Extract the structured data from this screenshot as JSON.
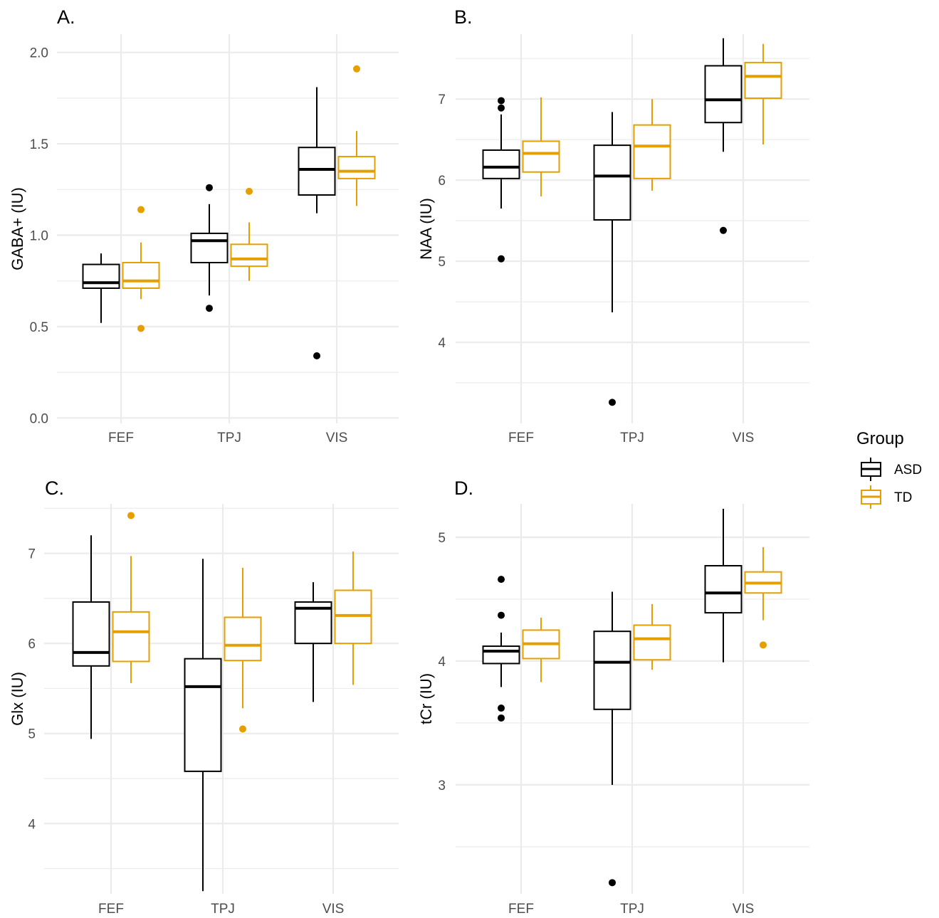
{
  "colors": {
    "ASD": "#000000",
    "TD": "#E69F00",
    "grid": "#ebebeb"
  },
  "legend": {
    "title": "Group",
    "items": [
      {
        "label": "ASD",
        "color": "#000000"
      },
      {
        "label": "TD",
        "color": "#E69F00"
      }
    ]
  },
  "chart_data": [
    {
      "panel": "A.",
      "type": "box",
      "ylabel": "GABA+ (IU)",
      "ylim": [
        -0.03,
        2.1
      ],
      "yticks": [
        0.0,
        0.5,
        1.0,
        1.5,
        2.0
      ],
      "ytick_labels": [
        "0.0",
        "0.5",
        "1.0",
        "1.5",
        "2.0"
      ],
      "yminor": [
        0.25,
        0.75,
        1.25,
        1.75
      ],
      "categories": [
        "FEF",
        "TPJ",
        "VIS"
      ],
      "groups": [
        {
          "name": "ASD",
          "boxes": [
            {
              "lo": 0.52,
              "q1": 0.71,
              "med": 0.74,
              "q3": 0.84,
              "hi": 0.9,
              "outliers": []
            },
            {
              "lo": 0.67,
              "q1": 0.85,
              "med": 0.97,
              "q3": 1.01,
              "hi": 1.17,
              "outliers": [
                1.26,
                0.6
              ]
            },
            {
              "lo": 1.12,
              "q1": 1.22,
              "med": 1.36,
              "q3": 1.48,
              "hi": 1.81,
              "outliers": [
                0.34
              ]
            }
          ]
        },
        {
          "name": "TD",
          "boxes": [
            {
              "lo": 0.65,
              "q1": 0.71,
              "med": 0.75,
              "q3": 0.85,
              "hi": 0.96,
              "outliers": [
                1.14,
                0.49
              ]
            },
            {
              "lo": 0.75,
              "q1": 0.83,
              "med": 0.87,
              "q3": 0.95,
              "hi": 1.07,
              "outliers": [
                1.24
              ]
            },
            {
              "lo": 1.16,
              "q1": 1.31,
              "med": 1.35,
              "q3": 1.43,
              "hi": 1.57,
              "outliers": [
                1.91
              ]
            }
          ]
        }
      ]
    },
    {
      "panel": "B.",
      "type": "box",
      "ylabel": "NAA (IU)",
      "ylim": [
        3.0,
        7.8
      ],
      "yticks": [
        4,
        5,
        6,
        7
      ],
      "ytick_labels": [
        "4",
        "5",
        "6",
        "7"
      ],
      "yminor": [
        3.5,
        4.5,
        5.5,
        6.5,
        7.5
      ],
      "categories": [
        "FEF",
        "TPJ",
        "VIS"
      ],
      "groups": [
        {
          "name": "ASD",
          "boxes": [
            {
              "lo": 5.65,
              "q1": 6.02,
              "med": 6.16,
              "q3": 6.37,
              "hi": 6.81,
              "outliers": [
                6.98,
                6.89,
                5.03
              ]
            },
            {
              "lo": 4.37,
              "q1": 5.51,
              "med": 6.05,
              "q3": 6.43,
              "hi": 6.84,
              "outliers": [
                3.26
              ]
            },
            {
              "lo": 6.35,
              "q1": 6.71,
              "med": 6.99,
              "q3": 7.41,
              "hi": 7.75,
              "outliers": [
                5.38
              ]
            }
          ]
        },
        {
          "name": "TD",
          "boxes": [
            {
              "lo": 5.8,
              "q1": 6.1,
              "med": 6.33,
              "q3": 6.48,
              "hi": 7.02,
              "outliers": []
            },
            {
              "lo": 5.87,
              "q1": 6.02,
              "med": 6.42,
              "q3": 6.68,
              "hi": 7.0,
              "outliers": []
            },
            {
              "lo": 6.44,
              "q1": 7.01,
              "med": 7.28,
              "q3": 7.45,
              "hi": 7.68,
              "outliers": []
            }
          ]
        }
      ]
    },
    {
      "panel": "C.",
      "type": "box",
      "ylabel": "Glx (IU)",
      "ylim": [
        3.22,
        7.55
      ],
      "yticks": [
        4,
        5,
        6,
        7
      ],
      "ytick_labels": [
        "4",
        "5",
        "6",
        "7"
      ],
      "yminor": [
        3.5,
        4.5,
        5.5,
        6.5,
        7.5
      ],
      "categories": [
        "FEF",
        "TPJ",
        "VIS"
      ],
      "groups": [
        {
          "name": "ASD",
          "boxes": [
            {
              "lo": 4.94,
              "q1": 5.75,
              "med": 5.9,
              "q3": 6.46,
              "hi": 7.2,
              "outliers": []
            },
            {
              "lo": 3.25,
              "q1": 4.58,
              "med": 5.52,
              "q3": 5.83,
              "hi": 6.94,
              "outliers": []
            },
            {
              "lo": 5.35,
              "q1": 6.0,
              "med": 6.39,
              "q3": 6.46,
              "hi": 6.68,
              "outliers": []
            }
          ]
        },
        {
          "name": "TD",
          "boxes": [
            {
              "lo": 5.56,
              "q1": 5.8,
              "med": 6.13,
              "q3": 6.35,
              "hi": 6.97,
              "outliers": [
                7.42
              ]
            },
            {
              "lo": 5.28,
              "q1": 5.81,
              "med": 5.98,
              "q3": 6.29,
              "hi": 6.84,
              "outliers": [
                5.05
              ]
            },
            {
              "lo": 5.54,
              "q1": 6.0,
              "med": 6.31,
              "q3": 6.59,
              "hi": 7.02,
              "outliers": []
            }
          ]
        }
      ]
    },
    {
      "panel": "D.",
      "type": "box",
      "ylabel": "tCr (IU)",
      "ylim": [
        2.12,
        5.27
      ],
      "yticks": [
        3,
        4,
        5
      ],
      "ytick_labels": [
        "3",
        "4",
        "5"
      ],
      "yminor": [
        2.5,
        3.5,
        4.5
      ],
      "categories": [
        "FEF",
        "TPJ",
        "VIS"
      ],
      "groups": [
        {
          "name": "ASD",
          "boxes": [
            {
              "lo": 3.79,
              "q1": 3.98,
              "med": 4.08,
              "q3": 4.12,
              "hi": 4.23,
              "outliers": [
                4.66,
                4.37,
                3.62,
                3.54
              ]
            },
            {
              "lo": 3.0,
              "q1": 3.61,
              "med": 3.99,
              "q3": 4.24,
              "hi": 4.56,
              "outliers": [
                2.21
              ]
            },
            {
              "lo": 3.99,
              "q1": 4.39,
              "med": 4.55,
              "q3": 4.77,
              "hi": 5.23,
              "outliers": []
            }
          ]
        },
        {
          "name": "TD",
          "boxes": [
            {
              "lo": 3.83,
              "q1": 4.02,
              "med": 4.14,
              "q3": 4.25,
              "hi": 4.35,
              "outliers": []
            },
            {
              "lo": 3.93,
              "q1": 4.01,
              "med": 4.18,
              "q3": 4.29,
              "hi": 4.46,
              "outliers": []
            },
            {
              "lo": 4.33,
              "q1": 4.55,
              "med": 4.63,
              "q3": 4.72,
              "hi": 4.92,
              "outliers": [
                4.13
              ]
            }
          ]
        }
      ]
    }
  ]
}
